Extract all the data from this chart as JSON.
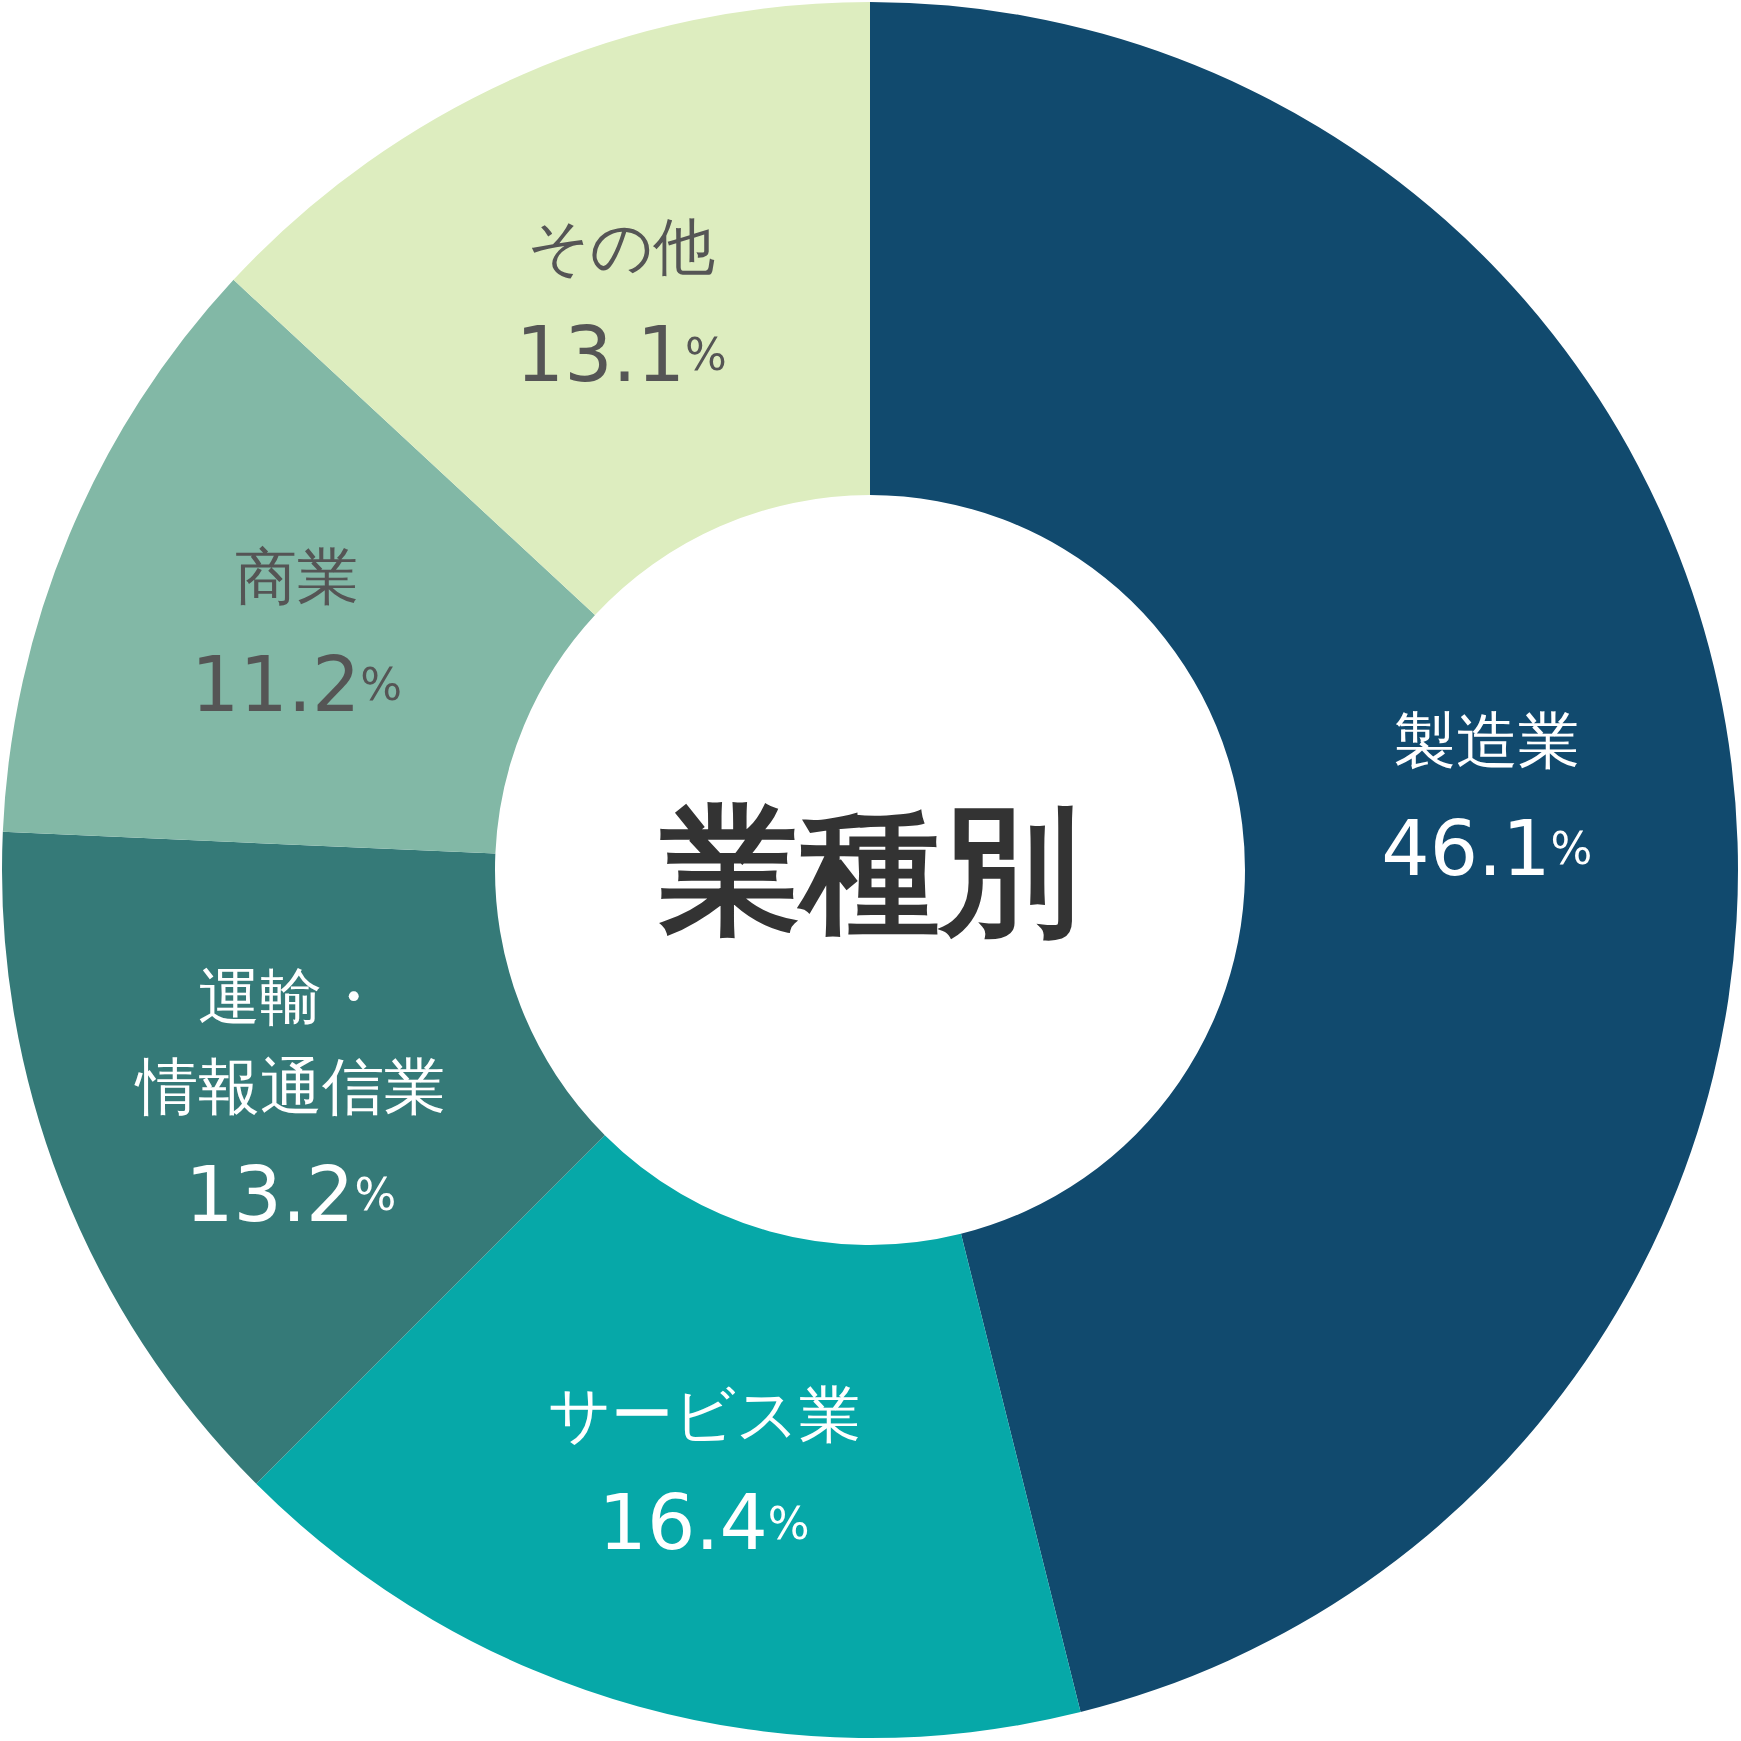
{
  "chart_data": {
    "type": "donut",
    "title": "業種別",
    "categories": [
      "製造業",
      "サービス業",
      "運輸・情報通信業",
      "商業",
      "その他"
    ],
    "values": [
      46.1,
      16.4,
      13.2,
      11.2,
      13.1
    ],
    "colors": [
      "#114a6e",
      "#06a8a8",
      "#357a78",
      "#82b8a6",
      "#ddedbf"
    ],
    "value_labels": [
      "46.1%",
      "16.4%",
      "13.2%",
      "11.2%",
      "13.1%"
    ],
    "legend": false
  }
}
